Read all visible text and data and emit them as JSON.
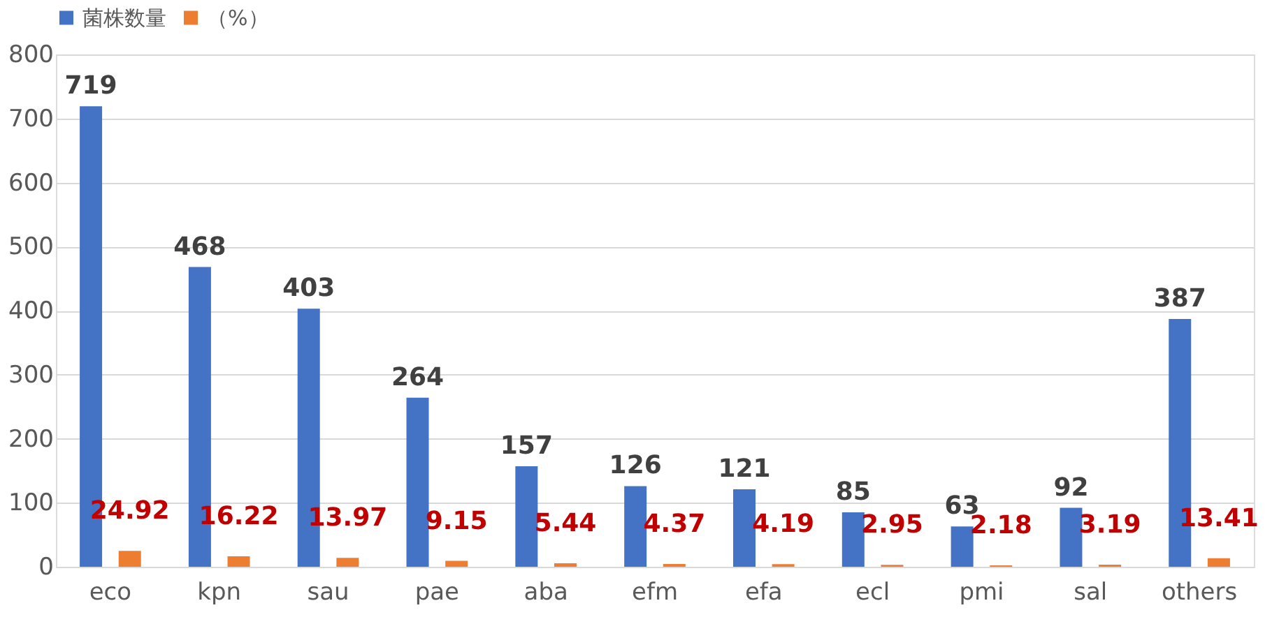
{
  "chart_data": {
    "type": "bar",
    "categories": [
      "eco",
      "kpn",
      "sau",
      "pae",
      "aba",
      "efm",
      "efa",
      "ecl",
      "pmi",
      "sal",
      "others"
    ],
    "series": [
      {
        "name": "菌株数量",
        "color": "#4472c4",
        "values": [
          719,
          468,
          403,
          264,
          157,
          126,
          121,
          85,
          63,
          92,
          387
        ]
      },
      {
        "name": "（%）",
        "color": "#ed7d31",
        "values": [
          24.92,
          16.22,
          13.97,
          9.15,
          5.44,
          4.37,
          4.19,
          2.95,
          2.18,
          3.19,
          13.41
        ]
      }
    ],
    "ylim": [
      0,
      800
    ],
    "yticks": [
      0,
      100,
      200,
      300,
      400,
      500,
      600,
      700,
      800
    ],
    "grid": "y",
    "legend": "top",
    "data_labels": true
  }
}
